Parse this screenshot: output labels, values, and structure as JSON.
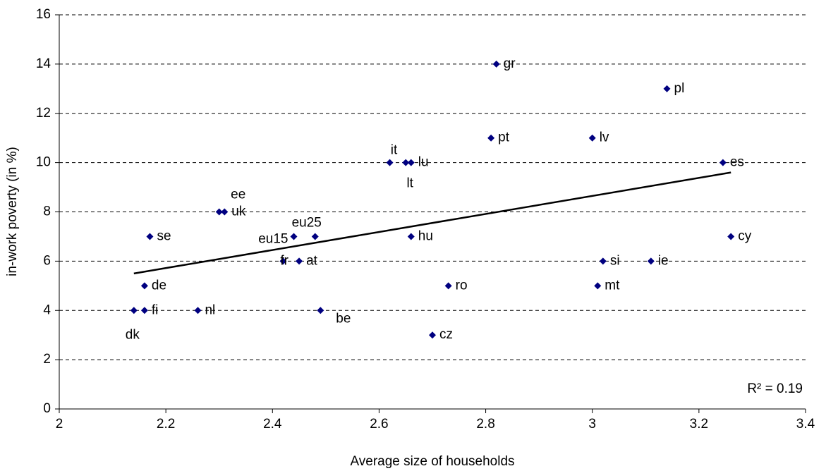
{
  "chart_data": {
    "type": "scatter",
    "x_label": "Average size of households",
    "y_label": "in-work poverty (in %)",
    "annotation": "R² = 0.19",
    "labels": [
      "gr",
      "pl",
      "pt",
      "lv",
      "es",
      "it",
      "lt",
      "lu",
      "ee",
      "uk",
      "se",
      "eu15",
      "eu25",
      "hu",
      "cy",
      "fr",
      "at",
      "si",
      "ie",
      "de",
      "ro",
      "mt",
      "dk",
      "fi",
      "nl",
      "be",
      "cz"
    ],
    "x": [
      2.82,
      3.14,
      2.81,
      3.0,
      3.245,
      2.62,
      2.65,
      2.66,
      2.3,
      2.31,
      2.17,
      2.44,
      2.48,
      2.66,
      3.26,
      2.42,
      2.45,
      3.02,
      3.11,
      2.16,
      2.73,
      3.01,
      2.14,
      2.16,
      2.26,
      2.49,
      2.7
    ],
    "values": [
      14,
      13,
      11,
      11,
      10,
      10,
      10,
      10,
      8,
      8,
      7,
      7,
      7,
      7,
      7,
      6,
      6,
      6,
      6,
      5,
      5,
      5,
      4,
      4,
      4,
      4,
      3
    ],
    "color": "#000080",
    "trendline": {
      "x": [
        2.14,
        3.26
      ],
      "y": [
        5.5,
        9.6
      ],
      "color": "#000000"
    },
    "xlim": [
      2,
      3.4
    ],
    "xticks": [
      2,
      2.2,
      2.4,
      2.6,
      2.8,
      3,
      3.2,
      3.4
    ],
    "ylim": [
      0,
      16
    ],
    "yticks": [
      0,
      2,
      4,
      6,
      8,
      10,
      12,
      14,
      16
    ],
    "grid": true
  }
}
